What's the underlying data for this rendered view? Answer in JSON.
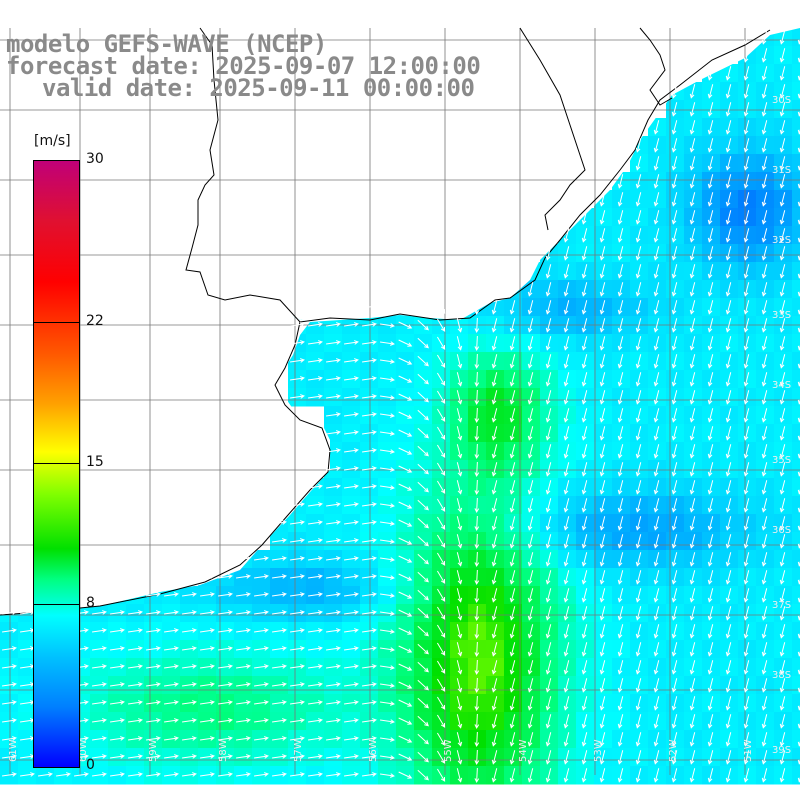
{
  "title": {
    "line1": "modelo GEFS-WAVE (NCEP)",
    "line2": "forecast date: 2025-09-07 12:00:00",
    "line3": "valid date: 2025-09-11 00:00:00"
  },
  "colorbar": {
    "unit": "[m/s]",
    "ticks": [
      {
        "value": 30,
        "label": "30"
      },
      {
        "value": 22,
        "label": "22"
      },
      {
        "value": 15,
        "label": "15"
      },
      {
        "value": 8,
        "label": "8"
      },
      {
        "value": 0,
        "label": "0"
      }
    ],
    "min": 0,
    "max": 30
  },
  "map": {
    "lon_labels": [
      "61W",
      "60W",
      "59W",
      "58W",
      "57W",
      "56W",
      "55W",
      "54W",
      "53W",
      "52W",
      "51W"
    ],
    "lat_labels": [
      "30S",
      "31S",
      "32S",
      "33S",
      "34S",
      "35S",
      "36S",
      "37S",
      "38S",
      "39S",
      "40S"
    ],
    "lon_range": [
      -61.5,
      -50.5
    ],
    "lat_range": [
      -29.5,
      -40.5
    ],
    "land_color": "#ffffff",
    "grid_color": "#777777"
  }
}
